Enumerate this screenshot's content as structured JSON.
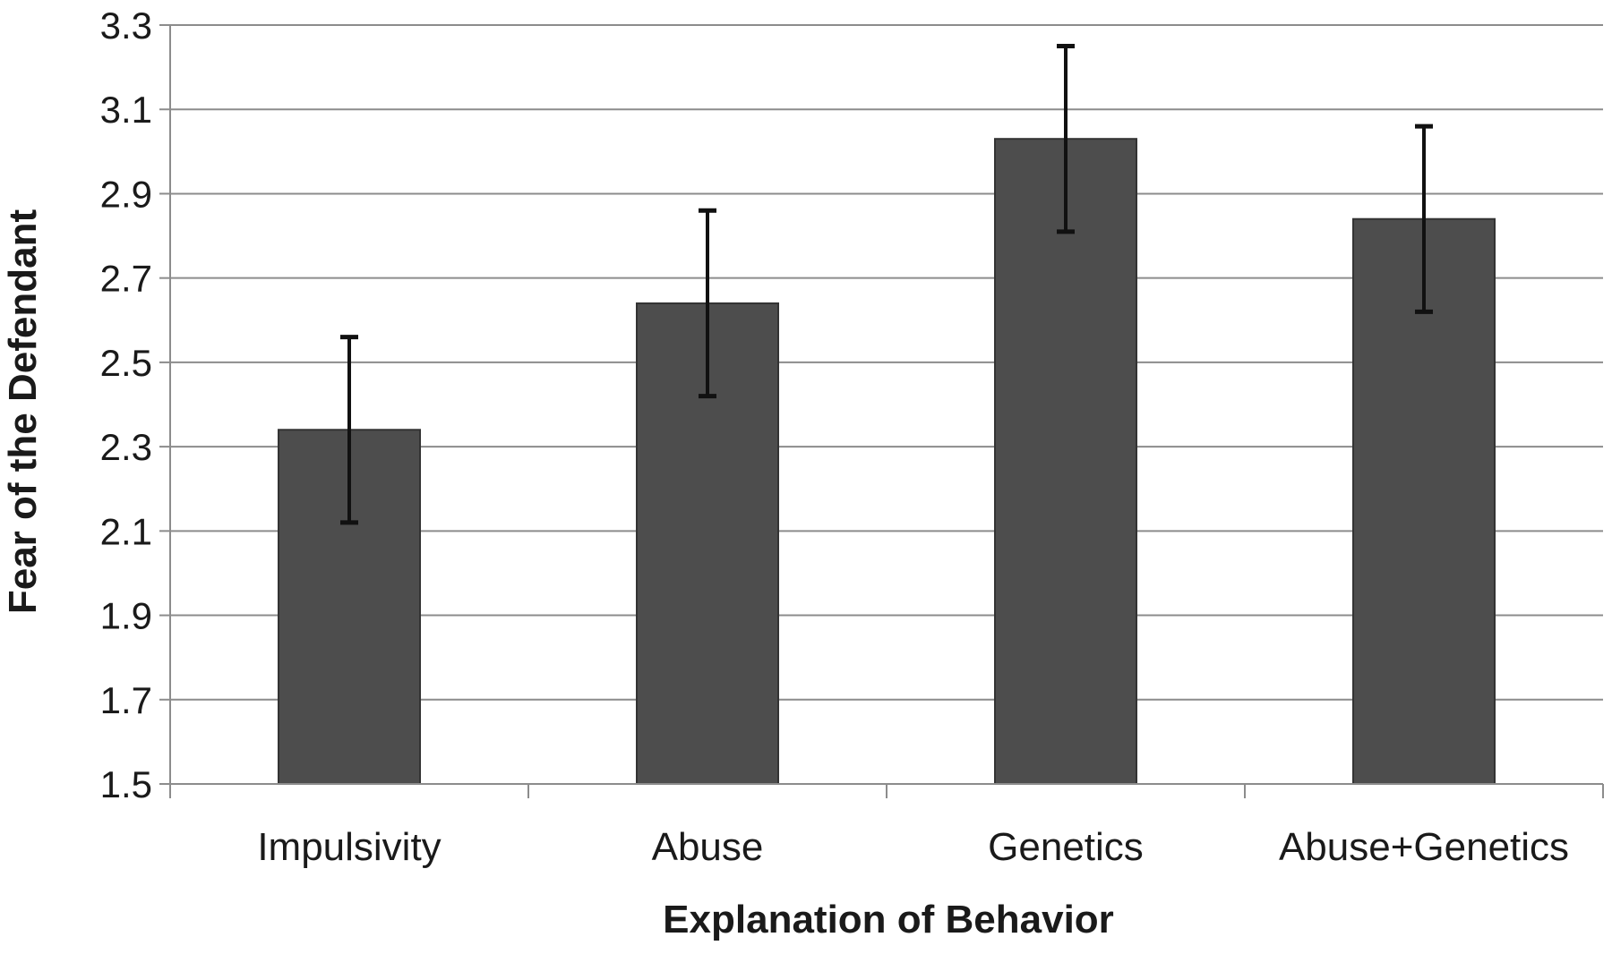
{
  "chart_data": {
    "type": "bar",
    "title": "",
    "xlabel": "Explanation of Behavior",
    "ylabel": "Fear of the Defendant",
    "categories": [
      "Impulsivity",
      "Abuse",
      "Genetics",
      "Abuse+Genetics"
    ],
    "values": [
      2.34,
      2.64,
      3.03,
      2.84
    ],
    "error_bars": {
      "lower": [
        2.12,
        2.42,
        2.81,
        2.62
      ],
      "upper": [
        2.56,
        2.86,
        3.25,
        3.06
      ]
    },
    "ylim": [
      1.5,
      3.3
    ],
    "yticks": [
      "1.5",
      "1.7",
      "1.9",
      "2.1",
      "2.3",
      "2.5",
      "2.7",
      "2.9",
      "3.1",
      "3.3"
    ],
    "grid": "horizontal",
    "legend": "none",
    "colors": {
      "bar": "#4d4d4d",
      "bar_edge": "#333333",
      "grid": "#8c8c8c",
      "error_bar": "#111111"
    }
  }
}
